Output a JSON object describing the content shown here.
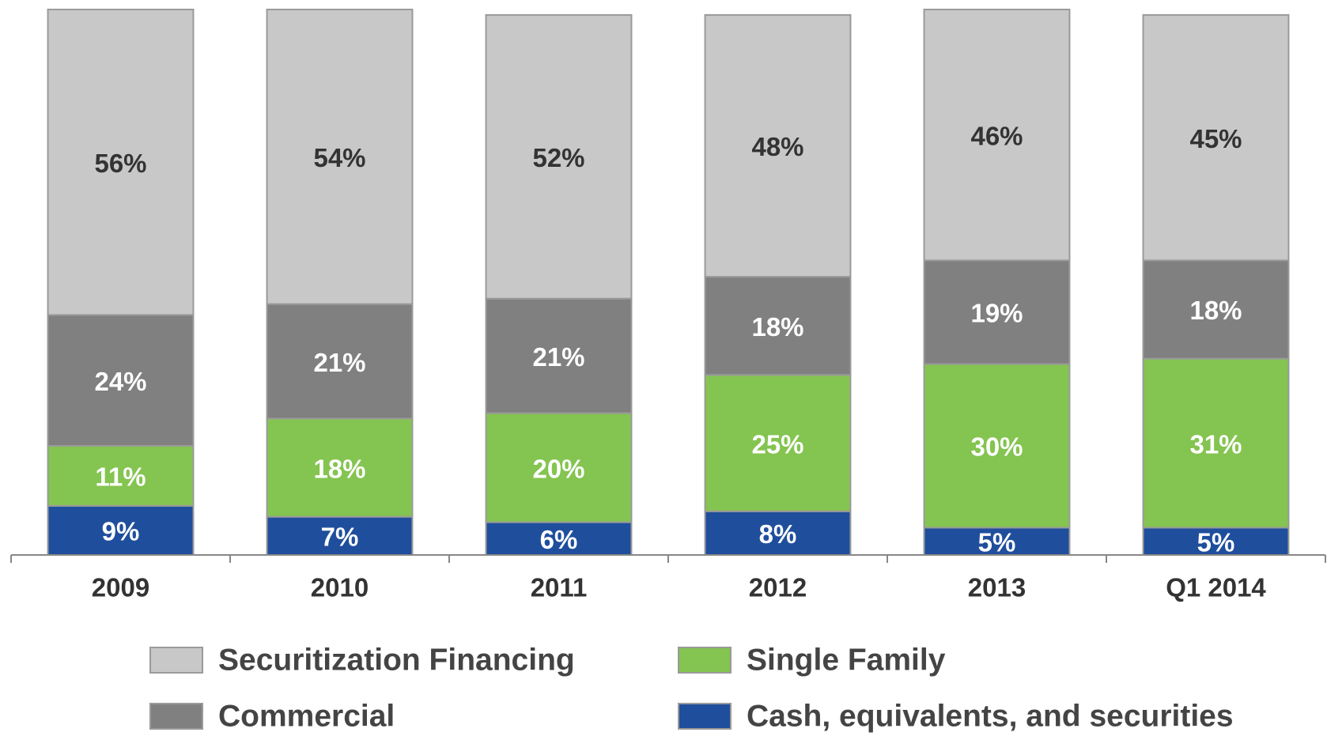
{
  "chart_data": {
    "type": "stacked_bar",
    "categories": [
      "2009",
      "2010",
      "2011",
      "2012",
      "2013",
      "Q1 2014"
    ],
    "series": [
      {
        "name": "Cash, equivalents, and securities",
        "color": "#1f4e9c",
        "values": [
          9,
          7,
          6,
          8,
          5,
          5
        ],
        "value_labels": [
          "9%",
          "7%",
          "6%",
          "8%",
          "5%",
          "5%"
        ]
      },
      {
        "name": "Single Family",
        "color": "#84c450",
        "values": [
          11,
          18,
          20,
          25,
          30,
          31
        ],
        "value_labels": [
          "11%",
          "18%",
          "20%",
          "25%",
          "30%",
          "31%"
        ]
      },
      {
        "name": "Commercial",
        "color": "#808080",
        "values": [
          24,
          21,
          21,
          18,
          19,
          18
        ],
        "value_labels": [
          "24%",
          "21%",
          "21%",
          "18%",
          "19%",
          "18%"
        ]
      },
      {
        "name": "Securitization Financing",
        "color": "#c8c8c8",
        "values": [
          56,
          54,
          52,
          48,
          46,
          45
        ],
        "value_labels": [
          "56%",
          "54%",
          "52%",
          "48%",
          "46%",
          "45%"
        ]
      }
    ],
    "ylim": [
      0,
      100
    ]
  }
}
